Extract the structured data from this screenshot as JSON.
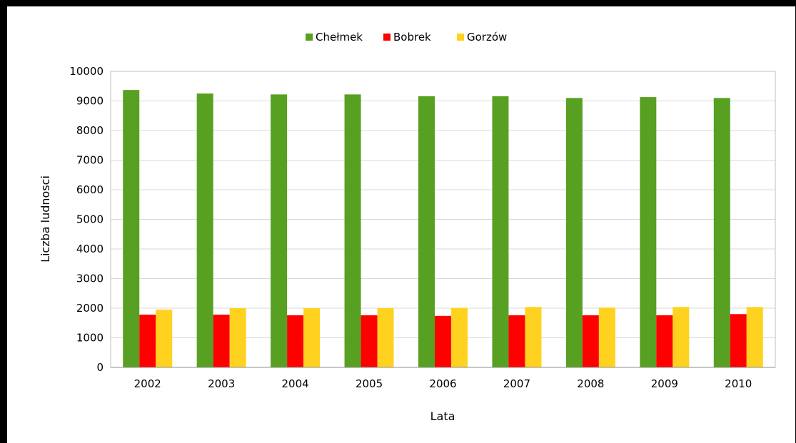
{
  "chart_data": {
    "type": "bar",
    "title": "",
    "xlabel": "Lata",
    "ylabel": "Liczba ludnosci",
    "categories": [
      "2002",
      "2003",
      "2004",
      "2005",
      "2006",
      "2007",
      "2008",
      "2009",
      "2010"
    ],
    "series": [
      {
        "name": "Chełmek",
        "color": "#58a021",
        "values": [
          9370,
          9250,
          9220,
          9220,
          9160,
          9160,
          9100,
          9130,
          9100
        ]
      },
      {
        "name": "Bobrek",
        "color": "#ff0000",
        "values": [
          1780,
          1780,
          1760,
          1760,
          1740,
          1760,
          1760,
          1760,
          1800
        ]
      },
      {
        "name": "Gorzów",
        "color": "#ffd21f",
        "values": [
          1950,
          2000,
          2000,
          2000,
          2010,
          2040,
          2020,
          2040,
          2040
        ]
      }
    ],
    "ylim": [
      0,
      10000
    ],
    "yticks": [
      "0",
      "1000",
      "2000",
      "3000",
      "4000",
      "5000",
      "6000",
      "7000",
      "8000",
      "9000",
      "10000"
    ],
    "grid": true,
    "legend_position": "top-center"
  }
}
